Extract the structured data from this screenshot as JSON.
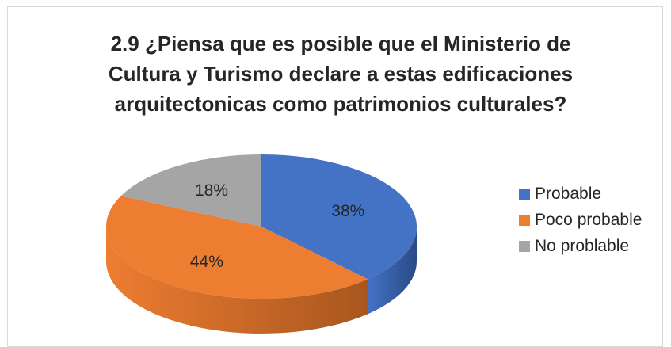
{
  "chart_data": {
    "type": "pie",
    "title_lines": [
      "2.9 ¿Piensa que es posible que el Ministerio de",
      "Cultura y Turismo declare a estas edificaciones",
      "arquitectonicas como patrimonios culturales?"
    ],
    "categories": [
      "Probable",
      "Poco probable",
      "No problable"
    ],
    "values": [
      38,
      44,
      18
    ],
    "data_labels": [
      "38%",
      "44%",
      "18%"
    ],
    "colors": [
      "#4472c4",
      "#ed7d31",
      "#a5a5a5"
    ],
    "side_colors": [
      "#2a4a86",
      "#a8561f",
      "#7a7a7a"
    ],
    "style": "3d-pie",
    "legend_position": "right"
  }
}
